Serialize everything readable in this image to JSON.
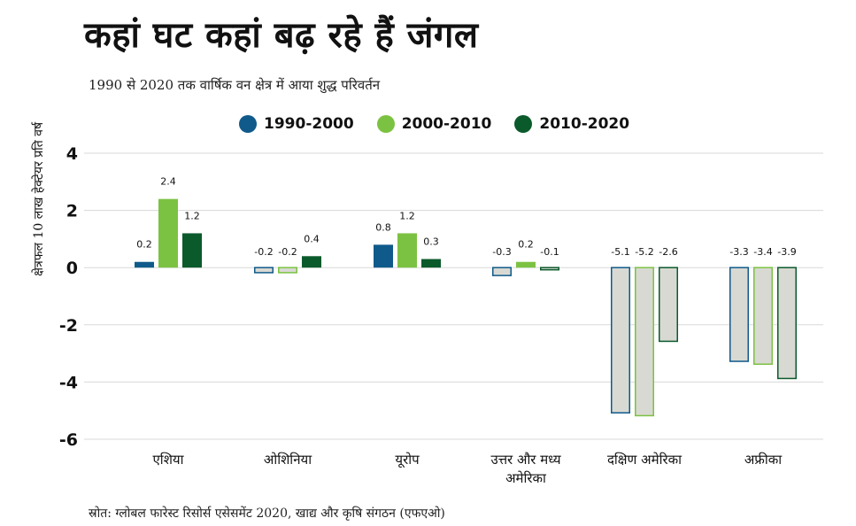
{
  "title": "कहां घट कहां बढ़ रहे हैं जंगल",
  "subtitle": "1990 से 2020 तक वार्षिक वन क्षेत्र में आया शुद्ध परिवर्तन",
  "source": "स्रोत: ग्लोबल फारेस्ट रिसोर्स एसेसमेंट 2020, खाद्य और कृषि संगठन (एफएओ)",
  "colors": {
    "s1990": "#0f5a8a",
    "s2000": "#7cc242",
    "s2010": "#0b5a2c",
    "negative_fill": "#d9d9d3",
    "grid": "#d8d8d8"
  },
  "chart_data": {
    "type": "bar",
    "ylabel": "क्षेत्रफल 10 लाख हेक्टेयर प्रति वर्ष",
    "ylim": [
      -6,
      4
    ],
    "yticks": [
      "-6",
      "-4",
      "-2",
      "0",
      "2",
      "4"
    ],
    "categories": [
      "एशिया",
      "ओशिनिया",
      "यूरोप",
      "उत्तर और मध्य\nअमेरिका",
      "दक्षिण अमेरिका",
      "अफ्रीका"
    ],
    "series": [
      {
        "name": "1990-2000",
        "values": [
          0.2,
          -0.2,
          0.8,
          -0.3,
          -5.1,
          -3.3
        ],
        "labels": [
          "0.2",
          "-0.2",
          "0.8",
          "-0.3",
          "-5.1",
          "-3.3"
        ]
      },
      {
        "name": "2000-2010",
        "values": [
          2.4,
          -0.2,
          1.2,
          0.2,
          -5.2,
          -3.4
        ],
        "labels": [
          "2.4",
          "-0.2",
          "1.2",
          "0.2",
          "-5.2",
          "-3.4"
        ]
      },
      {
        "name": "2010-2020",
        "values": [
          1.2,
          0.4,
          0.3,
          -0.1,
          -2.6,
          -3.9
        ],
        "labels": [
          "1.2",
          "0.4",
          "0.3",
          "-0.1",
          "-2.6",
          "-3.9"
        ]
      }
    ],
    "grid": true,
    "legend": "top"
  }
}
